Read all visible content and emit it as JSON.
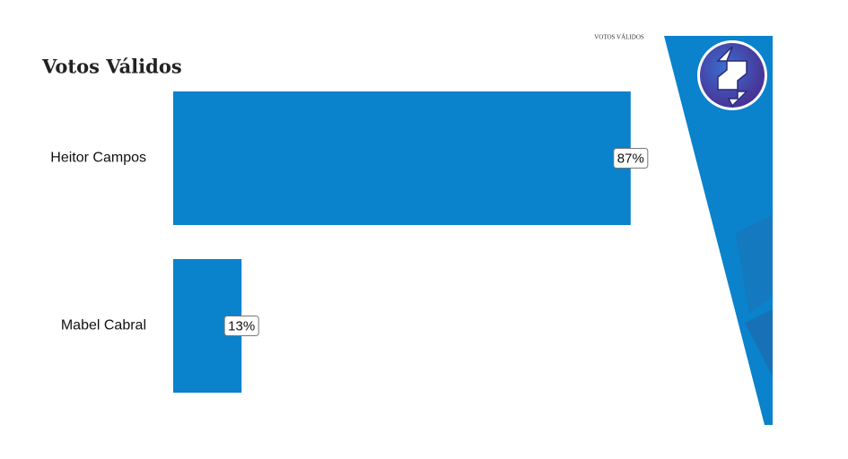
{
  "chart_data": {
    "type": "bar",
    "orientation": "horizontal",
    "title": "Votos Válidos",
    "subtitle": "VOTOS VÁLIDOS",
    "categories": [
      "Heitor Campos",
      "Mabel Cabral"
    ],
    "values": [
      87,
      13
    ],
    "value_labels": [
      "87%",
      "13%"
    ],
    "color": "#0a82cc",
    "xlim": [
      0,
      100
    ]
  }
}
